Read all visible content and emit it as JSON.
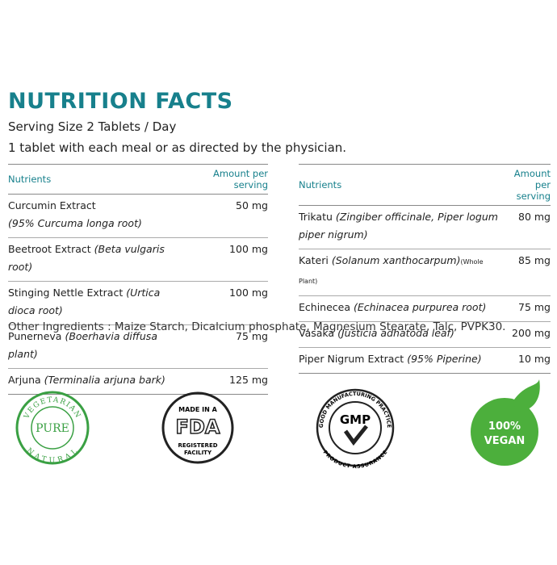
{
  "title": "NUTRITION FACTS",
  "serving": "Serving Size 2 Tablets / Day",
  "directions": "1 tablet with each meal or as directed by the physician.",
  "tables": [
    {
      "headers": [
        "Nutrients",
        "Amount per serving"
      ],
      "rows": [
        {
          "name": "Curcumin Extract",
          "detail": "(95% Curcuma longa root)",
          "amount": "50 mg"
        },
        {
          "name": "Beetroot Extract",
          "detail": "(Beta vulgaris root)",
          "amount": "100 mg"
        },
        {
          "name": "Stinging Nettle Extract",
          "detail": "(Urtica dioca root)",
          "amount": "100 mg"
        },
        {
          "name": "Punerneva",
          "detail": "(Boerhavia diffusa plant)",
          "amount": "75 mg"
        },
        {
          "name": "Arjuna",
          "detail": "(Terminalia arjuna bark)",
          "amount": "125 mg"
        }
      ]
    },
    {
      "headers": [
        "Nutrients",
        "Amount per serving"
      ],
      "rows": [
        {
          "name": "Trikatu",
          "detail": "(Zingiber officinale, Piper logum piper nigrum)",
          "amount": "80 mg"
        },
        {
          "name": "Kateri",
          "detail": "(Solanum xanthocarpum)",
          "note": "(Whole Plant)",
          "amount": "85 mg"
        },
        {
          "name": "Echinecea",
          "detail": "(Echinacea purpurea root)",
          "amount": "75 mg"
        },
        {
          "name": "Vasaka",
          "detail": "(Justicia adhatoda leaf)",
          "amount": "200 mg"
        },
        {
          "name": "Piper Nigrum Extract",
          "detail": "(95% Piperine)",
          "amount": "10 mg"
        }
      ]
    }
  ],
  "other_ingredients": "Other Ingredients : Maize Starch, Dicalcium phosphate, Magnesium Stearate, Talc, PVPK30.",
  "badges": [
    {
      "top": "VEGETARIAN",
      "middle": "PURE",
      "bottom": "NATURAL"
    },
    {
      "top": "MADE IN A",
      "middle": "FDA",
      "bottom": [
        "REGISTERED",
        "FACILITY"
      ]
    },
    {
      "top": "GOOD MANUFACTURING PRACTICE",
      "middle": "GMP",
      "bottom": "PRODUCT ASSURANCE"
    },
    {
      "top": "100%",
      "middle": "VEGAN"
    }
  ]
}
